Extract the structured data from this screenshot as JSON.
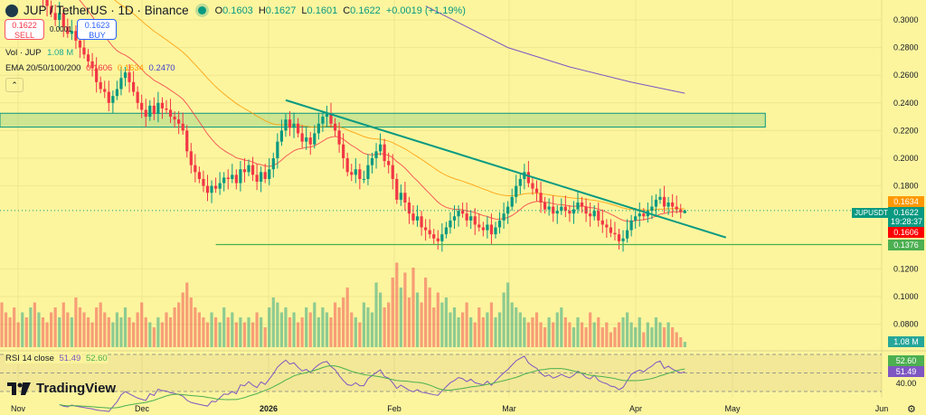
{
  "header": {
    "symbol_title": "JUP / TetherUS · 1D · Binance",
    "ohlc": {
      "o_label": "O",
      "o": "0.1603",
      "h_label": "H",
      "h": "0.1627",
      "l_label": "L",
      "l": "0.1601",
      "c_label": "C",
      "c": "0.1622",
      "change": "+0.0019 (+1.19%)"
    },
    "sell": {
      "price": "0.1622",
      "label": "SELL"
    },
    "buy": {
      "price": "0.1623",
      "label": "BUY"
    },
    "spread": "0.0001",
    "volume_legend": {
      "label": "Vol · JUP",
      "value": "1.08 M"
    },
    "ema_legend": {
      "label": "EMA 20/50/100/200",
      "v1": "0.1606",
      "v2": "0.1634",
      "v3": "0.2470"
    },
    "collapse_icon": "chevron-up-icon"
  },
  "rsi_legend": {
    "label": "RSI 14 close",
    "rsi": "51.49",
    "ma": "52.60"
  },
  "branding": "TradingView",
  "x_axis_labels": [
    "Nov",
    "Dec",
    "2026",
    "Feb",
    "Mar",
    "Apr",
    "May",
    "Jun"
  ],
  "price_tags": {
    "ema50": "0.1634",
    "symbol": "JUPUSDT",
    "last": "0.1622",
    "countdown": "19:28:37",
    "ema20": "0.1606",
    "support": "0.1376",
    "volume": "1.08 M",
    "rsi_ma": "52.60",
    "rsi": "51.49",
    "rsi_level": "40.00"
  },
  "colors": {
    "background": "#fcf59e",
    "up": "#089981",
    "down": "#f23645",
    "ema20": "#f23645",
    "ema50": "#ff9800",
    "ema200": "#7e57c2",
    "rsi": "#7e57c2",
    "rsi_ma": "#4caf50",
    "zone": "#089981"
  },
  "chart_data": {
    "type": "candlestick",
    "title": "JUP / TetherUS · 1D · Binance",
    "interval": "1D",
    "candle_dates": {
      "first": "2025-10-28",
      "last": "2026-04-12"
    },
    "ylim": [
      0.07,
      0.31
    ],
    "y_ticks": [
      "0.3000",
      "0.2800",
      "0.2600",
      "0.2400",
      "0.2200",
      "0.2000",
      "0.1800",
      "0.1200",
      "0.1000",
      "0.0800"
    ],
    "grid": true,
    "close": [
      0.37,
      0.36,
      0.35,
      0.34,
      0.33,
      0.335,
      0.325,
      0.33,
      0.32,
      0.32,
      0.315,
      0.31,
      0.305,
      0.3,
      0.305,
      0.295,
      0.29,
      0.292,
      0.285,
      0.28,
      0.275,
      0.27,
      0.265,
      0.255,
      0.25,
      0.248,
      0.24,
      0.245,
      0.25,
      0.258,
      0.262,
      0.255,
      0.248,
      0.24,
      0.235,
      0.23,
      0.238,
      0.232,
      0.24,
      0.236,
      0.235,
      0.23,
      0.228,
      0.225,
      0.22,
      0.205,
      0.195,
      0.19,
      0.185,
      0.18,
      0.175,
      0.18,
      0.178,
      0.182,
      0.186,
      0.185,
      0.188,
      0.182,
      0.192,
      0.19,
      0.195,
      0.188,
      0.183,
      0.19,
      0.185,
      0.192,
      0.2,
      0.212,
      0.22,
      0.228,
      0.222,
      0.225,
      0.218,
      0.212,
      0.215,
      0.21,
      0.218,
      0.225,
      0.23,
      0.232,
      0.225,
      0.22,
      0.21,
      0.2,
      0.19,
      0.188,
      0.192,
      0.185,
      0.185,
      0.195,
      0.2,
      0.205,
      0.21,
      0.198,
      0.195,
      0.185,
      0.17,
      0.175,
      0.168,
      0.16,
      0.155,
      0.158,
      0.15,
      0.148,
      0.145,
      0.142,
      0.14,
      0.145,
      0.15,
      0.155,
      0.158,
      0.162,
      0.16,
      0.155,
      0.158,
      0.152,
      0.15,
      0.148,
      0.152,
      0.145,
      0.15,
      0.155,
      0.16,
      0.165,
      0.172,
      0.18,
      0.185,
      0.19,
      0.182,
      0.178,
      0.175,
      0.168,
      0.163,
      0.165,
      0.16,
      0.162,
      0.165,
      0.162,
      0.16,
      0.163,
      0.168,
      0.165,
      0.16,
      0.158,
      0.162,
      0.155,
      0.152,
      0.15,
      0.146,
      0.145,
      0.14,
      0.142,
      0.148,
      0.155,
      0.158,
      0.16,
      0.158,
      0.162,
      0.165,
      0.17,
      0.172,
      0.165,
      0.168,
      0.165,
      0.163,
      0.161,
      0.1622
    ],
    "last_ohlc": {
      "open": 0.1603,
      "high": 0.1627,
      "low": 0.1601,
      "close": 0.1622
    },
    "volume_millions": [
      9,
      7,
      6,
      8,
      5,
      7,
      6,
      8,
      9,
      7,
      6,
      5,
      7,
      8,
      6,
      9,
      7,
      6,
      10,
      8,
      7,
      6,
      5,
      8,
      9,
      7,
      6,
      5,
      7,
      6,
      8,
      6,
      5,
      7,
      9,
      6,
      5,
      4,
      6,
      5,
      7,
      6,
      8,
      9,
      11,
      13,
      10,
      8,
      7,
      6,
      5,
      7,
      6,
      5,
      8,
      6,
      7,
      5,
      6,
      5,
      6,
      5,
      7,
      6,
      4,
      8,
      10,
      9,
      7,
      8,
      6,
      7,
      5,
      6,
      8,
      7,
      9,
      6,
      8,
      7,
      6,
      9,
      8,
      10,
      12,
      7,
      6,
      5,
      9,
      8,
      7,
      13,
      11,
      8,
      9,
      14,
      17,
      12,
      15,
      10,
      16,
      11,
      9,
      14,
      12,
      8,
      11,
      9,
      10,
      7,
      8,
      6,
      7,
      9,
      6,
      5,
      8,
      6,
      7,
      9,
      6,
      7,
      11,
      13,
      9,
      8,
      7,
      6,
      5,
      6,
      7,
      5,
      4,
      6,
      5,
      7,
      8,
      6,
      5,
      4,
      6,
      5,
      4,
      7,
      5,
      6,
      4,
      5,
      3,
      4,
      5,
      6,
      7,
      5,
      4,
      6,
      3,
      5,
      4,
      6,
      5,
      4,
      5,
      4,
      3,
      2,
      1.08
    ],
    "ema200_points": [
      [
        "2026-02-08",
        0.31
      ],
      [
        "2026-02-28",
        0.28
      ],
      [
        "2026-03-15",
        0.266
      ],
      [
        "2026-03-30",
        0.255
      ],
      [
        "2026-04-12",
        0.247
      ]
    ],
    "drawings": {
      "zone": {
        "top": 0.2325,
        "bottom": 0.2225,
        "from": "2025-10-28",
        "to": "2026-05-02"
      },
      "trendline": {
        "from": [
          "2026-01-05",
          0.242
        ],
        "to": [
          "2026-04-22",
          0.1427
        ]
      },
      "support_line": {
        "price": 0.1376,
        "from": "2025-12-19"
      }
    },
    "rsi": {
      "period": 14,
      "levels": [
        70,
        50,
        30
      ],
      "ma_period": 14,
      "last": 51.49,
      "last_ma": 52.6
    }
  }
}
